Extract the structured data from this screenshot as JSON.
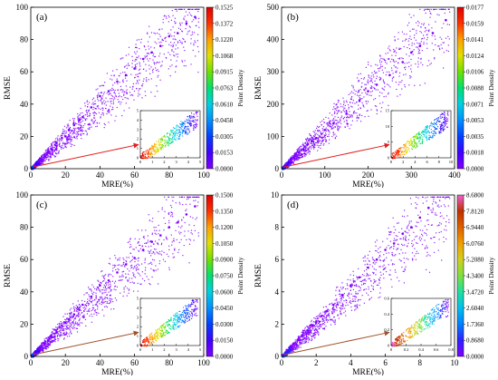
{
  "chart_data": [
    {
      "type": "scatter",
      "panel_label": "(a)",
      "xlabel": "MRE(%)",
      "ylabel": "RMSE",
      "xlim": [
        0,
        100
      ],
      "ylim": [
        0,
        100
      ],
      "xticks": [
        "0",
        "20",
        "40",
        "60",
        "80",
        "100"
      ],
      "yticks": [
        "0",
        "20",
        "40",
        "60",
        "80",
        "100"
      ],
      "x": [
        2,
        5,
        8,
        10,
        12,
        15,
        18,
        20,
        22,
        25,
        28,
        30,
        35,
        40,
        45,
        50,
        55,
        60,
        65,
        70,
        75,
        80,
        85,
        90,
        95
      ],
      "y": [
        2,
        5,
        8,
        10,
        12,
        16,
        19,
        20,
        24,
        27,
        30,
        32,
        38,
        45,
        48,
        54,
        58,
        62,
        68,
        72,
        76,
        82,
        84,
        90,
        94
      ],
      "colorbar_label": "Point Density",
      "colorbar_ticks": [
        "0.1525",
        "0.1372",
        "0.1220",
        "0.1068",
        "0.0915",
        "0.0763",
        "0.0610",
        "0.0458",
        "0.0305",
        "0.0153",
        "0.0000"
      ],
      "inset": {
        "xlim": [
          0,
          5
        ],
        "ylim": [
          0,
          5
        ],
        "xticks": [
          "0",
          "1",
          "2",
          "3",
          "4",
          "5"
        ],
        "yticks": [
          "0",
          "1",
          "2",
          "3",
          "4",
          "5"
        ]
      },
      "grid": false
    },
    {
      "type": "scatter",
      "panel_label": "(b)",
      "xlabel": "MRE(%)",
      "ylabel": "RMSE",
      "xlim": [
        0,
        400
      ],
      "ylim": [
        0,
        500
      ],
      "xticks": [
        "0",
        "100",
        "200",
        "300",
        "400"
      ],
      "yticks": [
        "0",
        "100",
        "200",
        "300",
        "400",
        "500"
      ],
      "x": [
        5,
        10,
        20,
        30,
        40,
        50,
        60,
        70,
        80,
        100,
        120,
        150,
        180,
        200,
        220,
        250,
        280,
        300,
        320,
        350,
        380
      ],
      "y": [
        5,
        15,
        25,
        40,
        50,
        60,
        75,
        85,
        95,
        120,
        140,
        170,
        210,
        240,
        260,
        290,
        330,
        360,
        380,
        420,
        460
      ],
      "colorbar_label": "Point Density",
      "colorbar_ticks": [
        "0.0177",
        "0.0159",
        "0.0141",
        "0.0124",
        "0.0106",
        "0.0088",
        "0.0071",
        "0.0053",
        "0.0035",
        "0.0018",
        "0.0000"
      ],
      "inset": {
        "xlim": [
          0,
          10
        ],
        "ylim": [
          0,
          15
        ],
        "xticks": [
          "0",
          "2",
          "4",
          "6",
          "8",
          "10"
        ],
        "yticks": [
          "0",
          "5",
          "10",
          "15"
        ]
      },
      "grid": false
    },
    {
      "type": "scatter",
      "panel_label": "(c)",
      "xlabel": "MRE(%)",
      "ylabel": "RMSE",
      "xlim": [
        0,
        100
      ],
      "ylim": [
        0,
        100
      ],
      "xticks": [
        "0",
        "20",
        "40",
        "60",
        "80",
        "100"
      ],
      "yticks": [
        "0",
        "20",
        "40",
        "60",
        "80",
        "100"
      ],
      "x": [
        2,
        5,
        8,
        10,
        12,
        15,
        18,
        20,
        22,
        25,
        28,
        30,
        35,
        40,
        45,
        50,
        55,
        60,
        65,
        70,
        75,
        80,
        85,
        90,
        95
      ],
      "y": [
        2,
        5,
        8,
        10,
        12,
        15,
        19,
        21,
        23,
        26,
        29,
        32,
        37,
        44,
        47,
        52,
        57,
        61,
        66,
        71,
        75,
        80,
        83,
        88,
        93
      ],
      "colorbar_label": "Point Density",
      "colorbar_ticks": [
        "0.1500",
        "0.1350",
        "0.1200",
        "0.1050",
        "0.0900",
        "0.0750",
        "0.0600",
        "0.0450",
        "0.0300",
        "0.0150",
        "0.0000"
      ],
      "inset": {
        "xlim": [
          0,
          5
        ],
        "ylim": [
          0,
          5
        ],
        "xticks": [
          "0",
          "1",
          "2",
          "3",
          "4",
          "5"
        ],
        "yticks": [
          "0",
          "1",
          "2",
          "3",
          "4",
          "5"
        ]
      },
      "grid": false
    },
    {
      "type": "scatter",
      "panel_label": "(d)",
      "xlabel": "MRE(%)",
      "ylabel": "RMSE",
      "xlim": [
        0,
        10
      ],
      "ylim": [
        0,
        10
      ],
      "xticks": [
        "0",
        "2",
        "4",
        "6",
        "8",
        "10"
      ],
      "yticks": [
        "0",
        "2",
        "4",
        "6",
        "8",
        "10"
      ],
      "x": [
        0.1,
        0.3,
        0.5,
        0.7,
        1.0,
        1.2,
        1.5,
        1.8,
        2.0,
        2.3,
        2.6,
        3.0,
        3.5,
        4.0,
        4.5,
        5.0,
        5.5,
        6.0,
        6.5,
        7.0,
        7.5,
        8.0,
        8.5
      ],
      "y": [
        0.1,
        0.4,
        0.6,
        0.8,
        1.1,
        1.3,
        1.6,
        1.9,
        2.1,
        2.5,
        2.8,
        3.2,
        3.8,
        4.4,
        4.9,
        5.5,
        6.0,
        6.6,
        7.0,
        7.6,
        8.0,
        8.6,
        9.2
      ],
      "colorbar_label": "Point Density",
      "colorbar_ticks": [
        "8.6800",
        "7.8120",
        "6.9440",
        "6.0760",
        "5.2080",
        "4.3400",
        "3.4720",
        "2.6040",
        "1.7360",
        "0.8680",
        "0.0000"
      ],
      "inset": {
        "xlim": [
          0,
          0.8
        ],
        "ylim": [
          0,
          0.6
        ],
        "xticks": [
          "0",
          "0.2",
          "0.4",
          "0.6",
          "0.8"
        ],
        "yticks": [
          "0",
          "0.2",
          "0.4",
          "0.6"
        ]
      },
      "grid": false
    }
  ],
  "colors": {
    "axis": "#000000",
    "points_low": "#8a2be2",
    "arrow_a": "#e02020",
    "arrow_b": "#e02020",
    "arrow_c": "#a0522d",
    "arrow_d": "#a0522d",
    "colormap_jet": [
      "#7f00ff",
      "#4000ff",
      "#0040ff",
      "#0090ff",
      "#00d0e0",
      "#00e070",
      "#70e000",
      "#e0e000",
      "#ffa000",
      "#ff3000",
      "#e00000"
    ],
    "colormap_d": [
      "#8000ff",
      "#3020ff",
      "#0080ff",
      "#00c0f0",
      "#20e0a0",
      "#80e040",
      "#d0d020",
      "#f0a000",
      "#e06000",
      "#c03000",
      "#f060d0"
    ]
  }
}
